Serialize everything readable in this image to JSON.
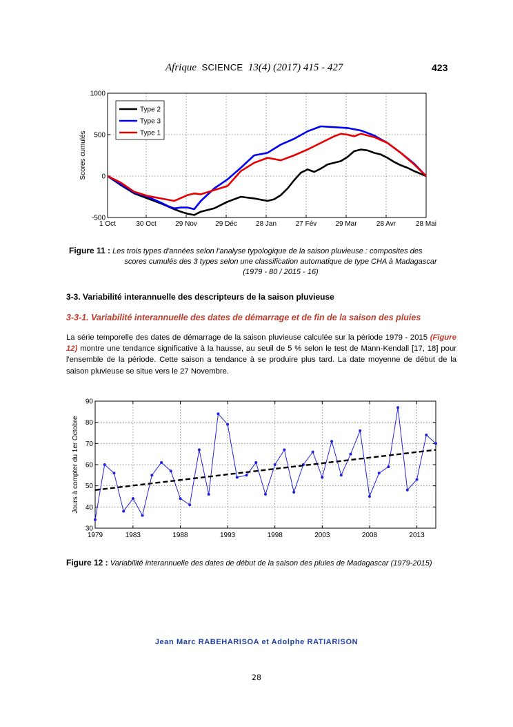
{
  "header": {
    "journal": "Afrique",
    "journal_sc": "SCIENCE",
    "volume": "13(4) (2017) 415 - 427",
    "page": "423"
  },
  "figure11": {
    "caption_label": "Figure 11 :",
    "caption_line1": "Les trois types d'années selon l'analyse typologique de la saison pluvieuse : composites des",
    "caption_line2": "scores cumulés des 3 types selon une classification automatique de type CHA à Madagascar",
    "caption_line3": "(1979 - 80 / 2015 - 16)",
    "chart_data": {
      "type": "line",
      "ylabel": "Scores cumulés",
      "ylim": [
        -500,
        1000
      ],
      "y_ticks": [
        "1000",
        "500",
        "0",
        "-500"
      ],
      "x_tick_labels": [
        "1 Oct",
        "30 Oct",
        "29 Nov",
        "29 Déc",
        "28 Jan",
        "27 Fév",
        "29 Mar",
        "28 Avr",
        "28 Mai"
      ],
      "x_ticks_day": [
        0,
        29,
        59,
        89,
        119,
        149,
        179,
        209,
        239
      ],
      "xlim": [
        0,
        239
      ],
      "grid": true,
      "legend_position": "top-left",
      "series": [
        {
          "name": "Type 2",
          "color": "#000000",
          "x": [
            0,
            10,
            20,
            30,
            40,
            50,
            55,
            60,
            65,
            70,
            80,
            90,
            100,
            110,
            120,
            125,
            130,
            135,
            140,
            145,
            150,
            155,
            160,
            165,
            170,
            175,
            180,
            185,
            190,
            195,
            200,
            205,
            210,
            215,
            220,
            225,
            230,
            239
          ],
          "y": [
            0,
            -110,
            -210,
            -270,
            -330,
            -400,
            -430,
            -455,
            -470,
            -430,
            -390,
            -310,
            -250,
            -270,
            -300,
            -280,
            -230,
            -150,
            -50,
            40,
            80,
            50,
            90,
            140,
            160,
            180,
            230,
            300,
            320,
            310,
            280,
            260,
            220,
            170,
            130,
            100,
            60,
            0
          ]
        },
        {
          "name": "Type 3",
          "color": "#0000ee",
          "x": [
            0,
            10,
            20,
            30,
            40,
            45,
            50,
            55,
            60,
            65,
            70,
            80,
            90,
            100,
            110,
            120,
            130,
            140,
            150,
            160,
            170,
            180,
            190,
            200,
            210,
            220,
            230,
            239
          ],
          "y": [
            0,
            -100,
            -200,
            -250,
            -320,
            -360,
            -390,
            -380,
            -380,
            -400,
            -300,
            -150,
            -40,
            100,
            250,
            280,
            380,
            450,
            540,
            600,
            590,
            580,
            550,
            490,
            400,
            280,
            150,
            0
          ]
        },
        {
          "name": "Type 1",
          "color": "#e60000",
          "x": [
            0,
            10,
            20,
            30,
            40,
            50,
            60,
            65,
            70,
            80,
            90,
            100,
            110,
            120,
            130,
            140,
            150,
            160,
            170,
            175,
            180,
            185,
            190,
            200,
            210,
            220,
            230,
            239
          ],
          "y": [
            0,
            -80,
            -190,
            -240,
            -270,
            -300,
            -230,
            -210,
            -220,
            -170,
            -120,
            60,
            160,
            220,
            190,
            250,
            320,
            400,
            480,
            510,
            500,
            480,
            510,
            470,
            400,
            280,
            140,
            0
          ]
        }
      ]
    }
  },
  "section": {
    "h33": "3-3. Variabilité interannuelle des descripteurs de la saison pluvieuse",
    "h331": "3-3-1. Variabilité interannuelle des dates de démarrage et de fin de la saison des pluies",
    "para_part1": "La série temporelle des dates de démarrage de la saison pluvieuse calculée sur la période 1979 - 2015",
    "para_ref": "(Figure 12)",
    "para_part2": " montre une tendance significative à la hausse, au seuil de 5 % selon le test de Mann-Kendall [17, 18] pour l'ensemble de la période. Cette saison a tendance à se produire plus tard. La date moyenne de début de la saison pluvieuse se situe vers le 27 Novembre."
  },
  "figure12": {
    "caption_label": "Figure 12 :",
    "caption_text": "Variabilité interannuelle des dates de début de la saison des pluies de Madagascar (1979-2015)",
    "chart_data": {
      "type": "line",
      "ylabel": "Jours à compter du 1er Octobre",
      "ylim": [
        30,
        90
      ],
      "y_ticks": [
        30,
        40,
        50,
        60,
        70,
        80,
        90
      ],
      "xlim": [
        1979,
        2015
      ],
      "x_tick_labels": [
        "1979",
        "1983",
        "1988",
        "1993",
        "1998",
        "2003",
        "2008",
        "2013"
      ],
      "x_ticks": [
        1979,
        1983,
        1988,
        1993,
        1998,
        2003,
        2008,
        2013
      ],
      "grid": true,
      "series": [
        {
          "color": "#2222dd",
          "x": [
            1979,
            1980,
            1981,
            1982,
            1983,
            1984,
            1985,
            1986,
            1987,
            1988,
            1989,
            1990,
            1991,
            1992,
            1993,
            1994,
            1995,
            1996,
            1997,
            1998,
            1999,
            2000,
            2001,
            2002,
            2003,
            2004,
            2005,
            2006,
            2007,
            2008,
            2009,
            2010,
            2011,
            2012,
            2013,
            2014,
            2015
          ],
          "y": [
            34,
            60,
            56,
            38,
            44,
            36,
            55,
            61,
            57,
            44,
            41,
            67,
            46,
            84,
            79,
            54,
            55,
            61,
            46,
            60,
            67,
            47,
            60,
            66,
            54,
            71,
            55,
            65,
            76,
            45,
            56,
            59,
            87,
            48,
            53,
            74,
            70
          ]
        },
        {
          "style": "dashed",
          "color": "#000000",
          "x": [
            1979,
            2015
          ],
          "y": [
            48,
            67
          ]
        }
      ]
    }
  },
  "footer": {
    "authors": "Jean Marc RABEHARISOA et Adolphe RATIARISON",
    "page_number": "28"
  }
}
